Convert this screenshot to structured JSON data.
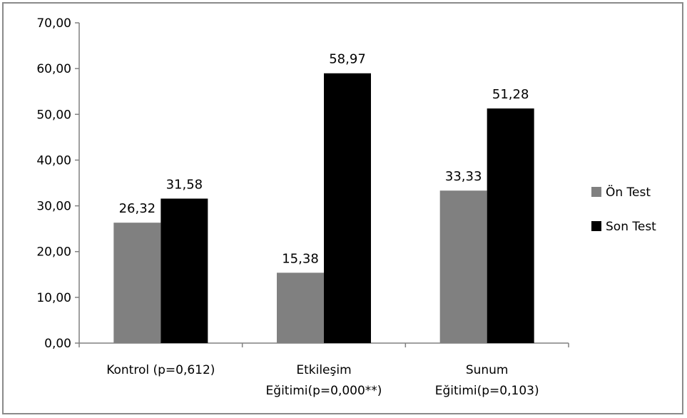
{
  "chart_data": {
    "type": "bar",
    "title": "",
    "xlabel": "",
    "ylabel": "",
    "ylim": [
      0,
      70
    ],
    "yticks": [
      "0,00",
      "10,00",
      "20,00",
      "30,00",
      "40,00",
      "50,00",
      "60,00",
      "70,00"
    ],
    "ytick_values": [
      0,
      10,
      20,
      30,
      40,
      50,
      60,
      70
    ],
    "categories": [
      [
        "Kontrol (p=0,612)"
      ],
      [
        "Etkileşim",
        "Eğitimi(p=0,000**)"
      ],
      [
        "Sunum",
        "Eğitimi(p=0,103)"
      ]
    ],
    "series": [
      {
        "name": "Ön Test",
        "color": "#808080",
        "values": [
          26.32,
          15.38,
          33.33
        ],
        "labels": [
          "26,32",
          "15,38",
          "33,33"
        ]
      },
      {
        "name": "Son Test",
        "color": "#000000",
        "values": [
          31.58,
          58.97,
          51.28
        ],
        "labels": [
          "31,58",
          "58,97",
          "51,28"
        ]
      }
    ],
    "grid": false,
    "legend_position": "right"
  }
}
